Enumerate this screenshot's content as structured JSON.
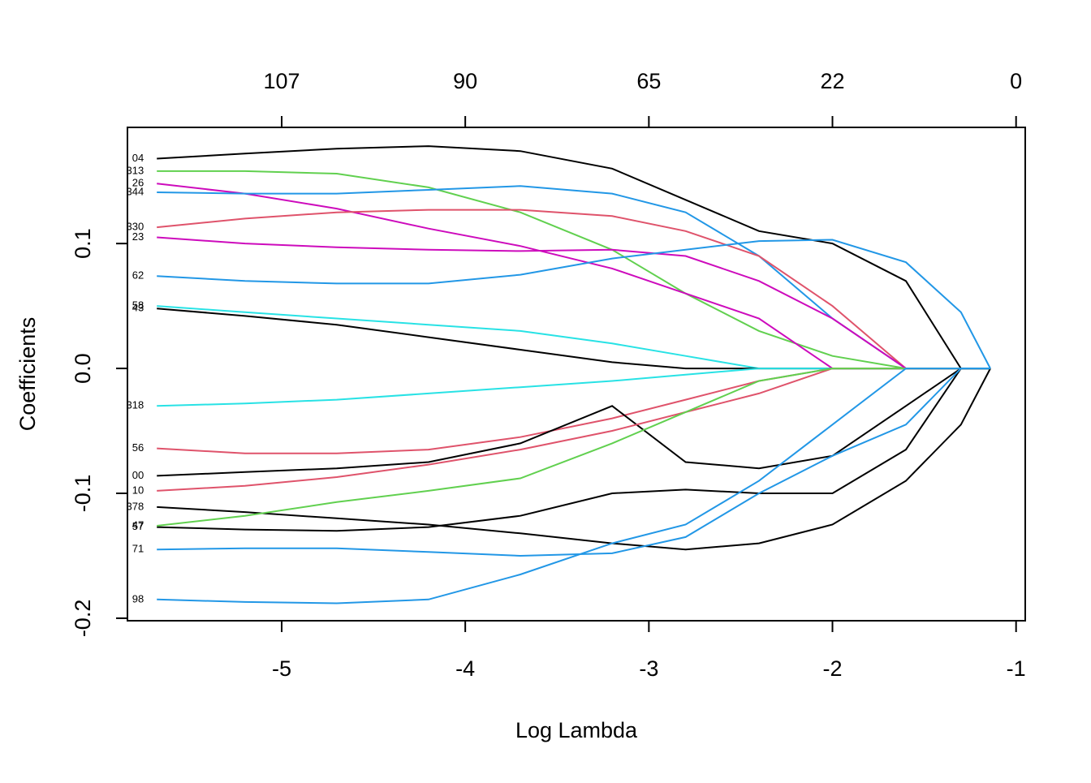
{
  "chart_data": {
    "type": "line",
    "xlabel": "Log Lambda",
    "ylabel": "Coefficients",
    "xlim": [
      -5.84,
      -0.95
    ],
    "ylim": [
      -0.202,
      0.193
    ],
    "xticks": [
      -5,
      -4,
      -3,
      -2,
      -1
    ],
    "yticks": [
      -0.2,
      -0.1,
      {
        "value": 0,
        "label": "0.0"
      },
      0.1
    ],
    "x2ticks": [
      {
        "value": -5,
        "label": "107"
      },
      {
        "value": -4,
        "label": "90"
      },
      {
        "value": -3,
        "label": "65"
      },
      {
        "value": -2,
        "label": "22"
      },
      {
        "value": -1,
        "label": "0"
      }
    ],
    "x": [
      -5.68,
      -5.2,
      -4.7,
      -4.2,
      -3.7,
      -3.2,
      -2.8,
      -2.4,
      -2.0,
      -1.6,
      -1.3,
      -1.14
    ],
    "series": [
      {
        "name": "04",
        "color": "#000000",
        "values": [
          0.168,
          0.172,
          0.176,
          0.178,
          0.174,
          0.16,
          0.135,
          0.11,
          0.1,
          0.07,
          0,
          0
        ]
      },
      {
        "name": "313",
        "color": "#61D04F",
        "values": [
          0.158,
          0.158,
          0.156,
          0.145,
          0.125,
          0.095,
          0.06,
          0.03,
          0.01,
          0,
          0,
          0
        ]
      },
      {
        "name": "26",
        "color": "#CD0BBC",
        "values": [
          0.148,
          0.14,
          0.128,
          0.112,
          0.098,
          0.08,
          0.06,
          0.04,
          0,
          0,
          0,
          0
        ]
      },
      {
        "name": "344",
        "color": "#2297E6",
        "values": [
          0.141,
          0.14,
          0.14,
          0.143,
          0.146,
          0.14,
          0.125,
          0.09,
          0.04,
          0,
          0,
          0
        ]
      },
      {
        "name": "330",
        "color": "#DF536B",
        "values": [
          0.113,
          0.12,
          0.125,
          0.127,
          0.127,
          0.122,
          0.11,
          0.09,
          0.05,
          0,
          0,
          0
        ]
      },
      {
        "name": "23",
        "color": "#CD0BBC",
        "values": [
          0.105,
          0.1,
          0.097,
          0.095,
          0.094,
          0.095,
          0.09,
          0.07,
          0.04,
          0,
          0,
          0
        ]
      },
      {
        "name": "62",
        "color": "#2297E6",
        "values": [
          0.074,
          0.07,
          0.068,
          0.068,
          0.075,
          0.088,
          0.095,
          0.102,
          0.103,
          0.085,
          0.045,
          0
        ]
      },
      {
        "name": "58",
        "color": "#28E2E5",
        "values": [
          0.05,
          0.045,
          0.04,
          0.035,
          0.03,
          0.02,
          0.01,
          0,
          0,
          0,
          0,
          0
        ]
      },
      {
        "name": "43",
        "color": "#000000",
        "values": [
          0.048,
          0.042,
          0.035,
          0.025,
          0.015,
          0.005,
          0,
          0,
          0,
          0,
          0,
          0
        ]
      },
      {
        "name": "318",
        "color": "#28E2E5",
        "values": [
          -0.03,
          -0.028,
          -0.025,
          -0.02,
          -0.015,
          -0.01,
          -0.005,
          0,
          0,
          0,
          0,
          0
        ]
      },
      {
        "name": "56",
        "color": "#DF536B",
        "values": [
          -0.064,
          -0.068,
          -0.068,
          -0.065,
          -0.055,
          -0.04,
          -0.025,
          -0.01,
          0,
          0,
          0,
          0
        ]
      },
      {
        "name": "00",
        "color": "#000000",
        "values": [
          -0.086,
          -0.083,
          -0.08,
          -0.075,
          -0.06,
          -0.03,
          -0.075,
          -0.08,
          -0.07,
          -0.03,
          0,
          0
        ]
      },
      {
        "name": "10",
        "color": "#DF536B",
        "values": [
          -0.098,
          -0.094,
          -0.087,
          -0.077,
          -0.065,
          -0.05,
          -0.035,
          -0.02,
          0,
          0,
          0,
          0
        ]
      },
      {
        "name": "378",
        "color": "#000000",
        "values": [
          -0.111,
          -0.115,
          -0.12,
          -0.125,
          -0.132,
          -0.14,
          -0.145,
          -0.14,
          -0.125,
          -0.09,
          -0.045,
          0
        ]
      },
      {
        "name": "57",
        "color": "#000000",
        "values": [
          -0.127,
          -0.129,
          -0.13,
          -0.127,
          -0.118,
          -0.1,
          -0.097,
          -0.1,
          -0.1,
          -0.065,
          0,
          0
        ]
      },
      {
        "name": "47",
        "color": "#61D04F",
        "values": [
          -0.126,
          -0.118,
          -0.107,
          -0.098,
          -0.088,
          -0.06,
          -0.035,
          -0.01,
          0,
          0,
          0,
          0
        ]
      },
      {
        "name": "71",
        "color": "#2297E6",
        "values": [
          -0.145,
          -0.144,
          -0.144,
          -0.147,
          -0.15,
          -0.148,
          -0.135,
          -0.1,
          -0.07,
          -0.045,
          0,
          0
        ]
      },
      {
        "name": "98",
        "color": "#2297E6",
        "values": [
          -0.185,
          -0.187,
          -0.188,
          -0.185,
          -0.165,
          -0.14,
          -0.125,
          -0.09,
          -0.045,
          0,
          0,
          0
        ]
      }
    ]
  }
}
